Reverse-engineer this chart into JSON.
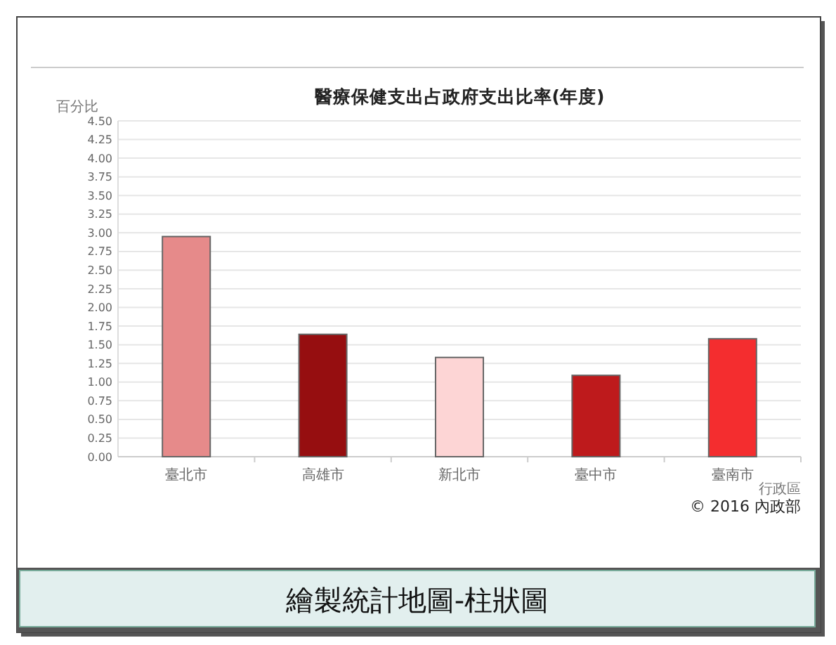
{
  "chart_data": {
    "type": "bar",
    "title": "醫療保健支出占政府支出比率(年度)",
    "ylabel": "百分比",
    "xlabel": "行政區",
    "categories": [
      "臺北市",
      "高雄市",
      "新北市",
      "臺中市",
      "臺南市"
    ],
    "values": [
      2.95,
      1.64,
      1.33,
      1.09,
      1.58
    ],
    "colors": [
      "#e68a8a",
      "#960e10",
      "#fdd5d5",
      "#be1a1c",
      "#f42d2f"
    ],
    "ylim": [
      0,
      4.5
    ],
    "yticks": [
      {
        "value": 0,
        "label": "0.00"
      },
      {
        "value": 0.25,
        "label": "0.25"
      },
      {
        "value": 0.5,
        "label": "0.50"
      },
      {
        "value": 0.75,
        "label": "0.75"
      },
      {
        "value": 1,
        "label": "1.00"
      },
      {
        "value": 1.25,
        "label": "1.25"
      },
      {
        "value": 1.5,
        "label": "1.50"
      },
      {
        "value": 1.75,
        "label": "1.75"
      },
      {
        "value": 2,
        "label": "2.00"
      },
      {
        "value": 2.25,
        "label": "2.25"
      },
      {
        "value": 2.5,
        "label": "2.50"
      },
      {
        "value": 2.75,
        "label": "2.75"
      },
      {
        "value": 3,
        "label": "3.00"
      },
      {
        "value": 3.25,
        "label": "3.25"
      },
      {
        "value": 3.5,
        "label": "3.50"
      },
      {
        "value": 3.75,
        "label": "3.75"
      },
      {
        "value": 4,
        "label": "4.00"
      },
      {
        "value": 4.25,
        "label": "4.25"
      },
      {
        "value": 4.5,
        "label": "4.50"
      }
    ],
    "grid": "y",
    "annotations": [
      "© 2016 內政部",
      "繪製統計地圖-柱狀圖"
    ]
  }
}
